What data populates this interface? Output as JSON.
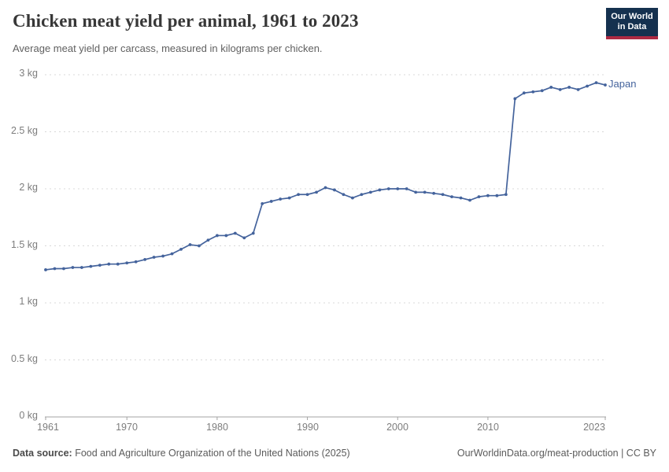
{
  "header": {
    "title": "Chicken meat yield per animal, 1961 to 2023",
    "subtitle": "Average meat yield per carcass, measured in kilograms per chicken.",
    "logo_line1": "Our World",
    "logo_line2": "in Data"
  },
  "colors": {
    "line": "#44639C",
    "logo_bg": "#15314F",
    "logo_stripe": "#AD2A43",
    "grid": "#D8D8D8",
    "axis": "#A3A3A3"
  },
  "chart_data": {
    "type": "line",
    "title": "Chicken meat yield per animal, 1961 to 2023",
    "subtitle": "Average meat yield per carcass, measured in kilograms per chicken.",
    "xlabel": "",
    "ylabel": "",
    "xlim": [
      1961,
      2023
    ],
    "ylim": [
      0,
      3
    ],
    "grid": "horizontal-dashed",
    "legend_position": "end-of-line-label",
    "x": [
      1961,
      1962,
      1963,
      1964,
      1965,
      1966,
      1967,
      1968,
      1969,
      1970,
      1971,
      1972,
      1973,
      1974,
      1975,
      1976,
      1977,
      1978,
      1979,
      1980,
      1981,
      1982,
      1983,
      1984,
      1985,
      1986,
      1987,
      1988,
      1989,
      1990,
      1991,
      1992,
      1993,
      1994,
      1995,
      1996,
      1997,
      1998,
      1999,
      2000,
      2001,
      2002,
      2003,
      2004,
      2005,
      2006,
      2007,
      2008,
      2009,
      2010,
      2011,
      2012,
      2013,
      2014,
      2015,
      2016,
      2017,
      2018,
      2019,
      2020,
      2021,
      2022,
      2023
    ],
    "series": [
      {
        "name": "Japan",
        "color": "#44639C",
        "unit": "kg",
        "values": [
          1.29,
          1.3,
          1.3,
          1.31,
          1.31,
          1.32,
          1.33,
          1.34,
          1.34,
          1.35,
          1.36,
          1.38,
          1.4,
          1.41,
          1.43,
          1.47,
          1.51,
          1.5,
          1.55,
          1.59,
          1.59,
          1.61,
          1.57,
          1.61,
          1.87,
          1.89,
          1.91,
          1.92,
          1.95,
          1.95,
          1.97,
          2.01,
          1.99,
          1.95,
          1.92,
          1.95,
          1.97,
          1.99,
          2.0,
          2.0,
          2.0,
          1.97,
          1.97,
          1.96,
          1.95,
          1.93,
          1.92,
          1.9,
          1.93,
          1.94,
          1.94,
          1.95,
          2.79,
          2.84,
          2.85,
          2.86,
          2.89,
          2.87,
          2.89,
          2.87,
          2.9,
          2.93,
          2.91
        ]
      }
    ],
    "y_ticks": [
      {
        "label": "3 kg",
        "value": 3
      },
      {
        "label": "2.5 kg",
        "value": 2.5
      },
      {
        "label": "2 kg",
        "value": 2
      },
      {
        "label": "1.5 kg",
        "value": 1.5
      },
      {
        "label": "1 kg",
        "value": 1
      },
      {
        "label": "0.5 kg",
        "value": 0.5
      },
      {
        "label": "0 kg",
        "value": 0
      }
    ],
    "x_ticks": [
      {
        "label": "1961",
        "year": 1961
      },
      {
        "label": "1970",
        "year": 1970
      },
      {
        "label": "1980",
        "year": 1980
      },
      {
        "label": "1990",
        "year": 1990
      },
      {
        "label": "2000",
        "year": 2000
      },
      {
        "label": "2010",
        "year": 2010
      },
      {
        "label": "2023",
        "year": 2023
      }
    ]
  },
  "footer": {
    "source_label": "Data source:",
    "source_text": " Food and Agriculture Organization of the United Nations (2025)",
    "credit": "OurWorldinData.org/meat-production | CC BY"
  }
}
